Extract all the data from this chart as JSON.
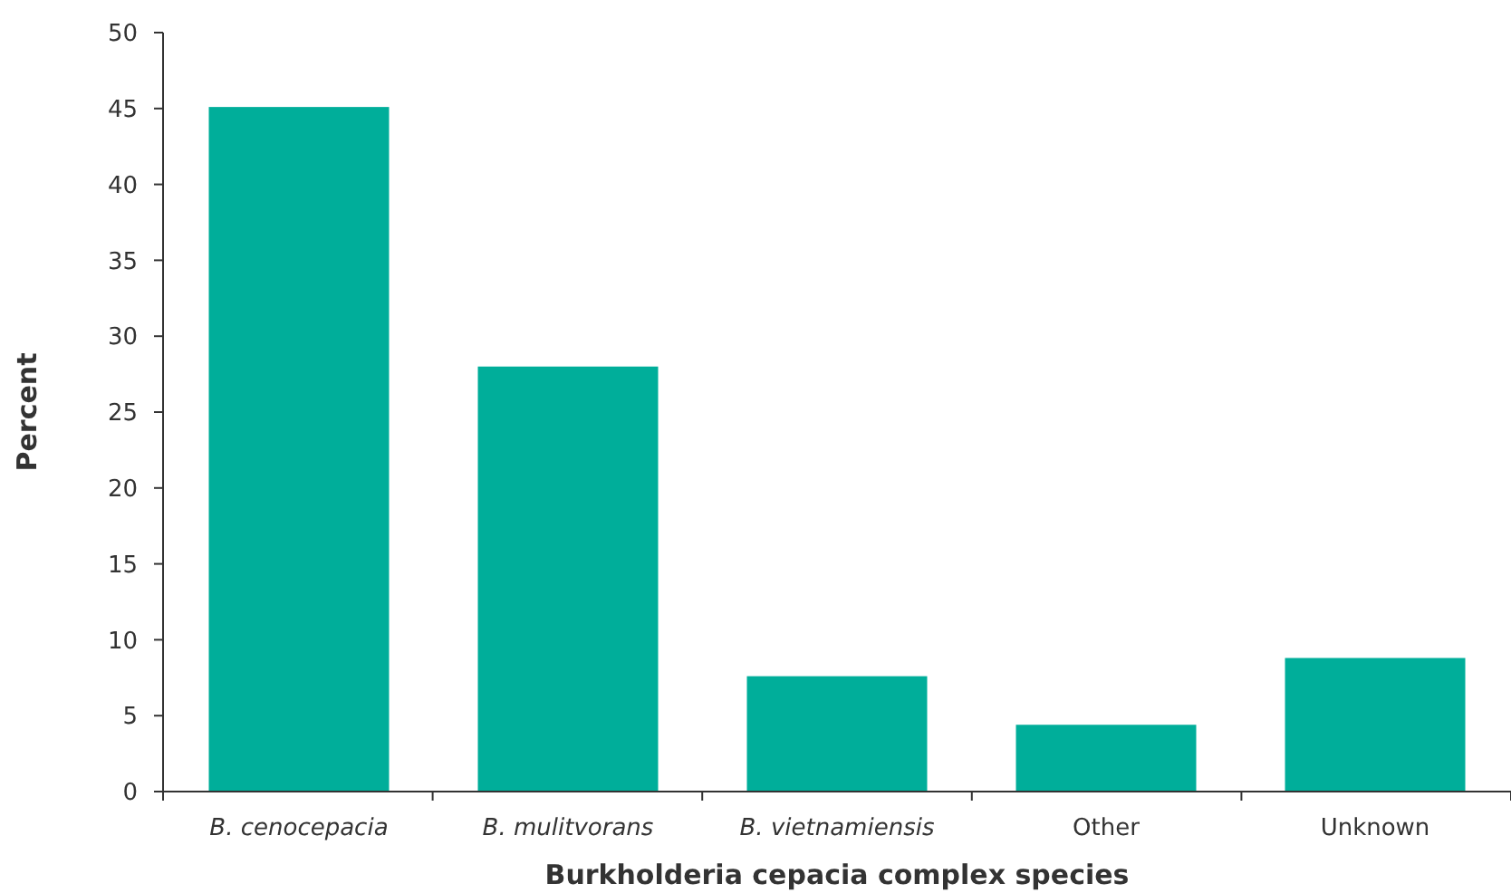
{
  "chart_data": {
    "type": "bar",
    "xlabel": "Burkholderia cepacia complex species",
    "ylabel": "Percent",
    "categories": [
      "B. cenocepacia",
      "B. mulitvorans",
      "B. vietnamiensis",
      "Other",
      "Unknown"
    ],
    "values": [
      45.1,
      28.0,
      7.6,
      4.4,
      8.8
    ],
    "color": "#00ae9a",
    "ylim": [
      0,
      50
    ],
    "yticks": [
      0,
      5,
      10,
      15,
      20,
      25,
      30,
      35,
      40,
      45,
      50
    ],
    "grid": false
  }
}
